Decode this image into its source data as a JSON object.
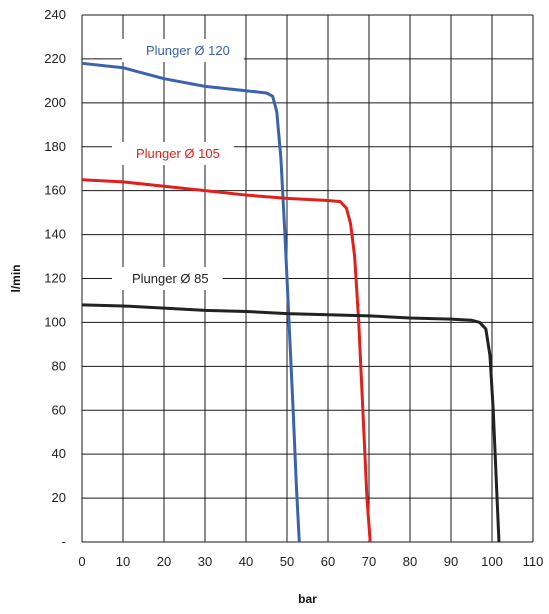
{
  "chart_data": {
    "type": "line",
    "title": "",
    "xlabel": "bar",
    "ylabel": "l/min",
    "xlim": [
      0,
      110
    ],
    "ylim": [
      0,
      240
    ],
    "x_ticks": [
      0,
      10,
      20,
      30,
      40,
      50,
      60,
      70,
      80,
      90,
      100,
      110
    ],
    "x_tick_labels": [
      "0",
      "10",
      "20",
      "30",
      "40",
      "50",
      "60",
      "70",
      "80",
      "90",
      "100",
      "110"
    ],
    "y_ticks": [
      0,
      20,
      40,
      60,
      80,
      100,
      120,
      140,
      160,
      180,
      200,
      220,
      240
    ],
    "y_tick_labels": [
      "-",
      "20",
      "40",
      "60",
      "80",
      "100",
      "120",
      "140",
      "160",
      "180",
      "200",
      "220",
      "240"
    ],
    "grid": true,
    "series": [
      {
        "name": "Plunger Ø 120",
        "color": "#3b63ad",
        "points": [
          [
            0,
            218
          ],
          [
            10,
            216
          ],
          [
            20,
            211
          ],
          [
            30,
            207.5
          ],
          [
            40,
            205.5
          ],
          [
            45,
            204.5
          ],
          [
            46.5,
            203
          ],
          [
            47.5,
            196
          ],
          [
            48.5,
            175
          ],
          [
            49.5,
            140
          ],
          [
            50.5,
            100
          ],
          [
            51.5,
            60
          ],
          [
            52.3,
            25
          ],
          [
            53,
            0
          ]
        ]
      },
      {
        "name": "Plunger Ø 105",
        "color": "#e0201b",
        "points": [
          [
            0,
            165
          ],
          [
            10,
            164
          ],
          [
            20,
            162
          ],
          [
            30,
            160
          ],
          [
            40,
            158
          ],
          [
            50,
            156.5
          ],
          [
            60,
            155.5
          ],
          [
            63,
            155
          ],
          [
            64.5,
            152
          ],
          [
            65.5,
            145
          ],
          [
            66.5,
            130
          ],
          [
            67.5,
            100
          ],
          [
            68.5,
            60
          ],
          [
            69.5,
            20
          ],
          [
            70.3,
            0
          ]
        ]
      },
      {
        "name": "Plunger Ø 85",
        "color": "#222222",
        "points": [
          [
            0,
            108
          ],
          [
            10,
            107.5
          ],
          [
            20,
            106.5
          ],
          [
            30,
            105.5
          ],
          [
            40,
            105
          ],
          [
            50,
            104
          ],
          [
            60,
            103.5
          ],
          [
            70,
            103
          ],
          [
            80,
            102
          ],
          [
            90,
            101.5
          ],
          [
            95,
            101
          ],
          [
            97,
            100
          ],
          [
            98.5,
            97
          ],
          [
            99.5,
            85
          ],
          [
            100.3,
            60
          ],
          [
            101,
            30
          ],
          [
            101.7,
            0
          ]
        ]
      }
    ],
    "annotations": [
      {
        "text": "Plunger Ø 120",
        "series": 0
      },
      {
        "text": "Plunger Ø 105",
        "series": 1
      },
      {
        "text": "Plunger Ø 85",
        "series": 2
      }
    ]
  }
}
